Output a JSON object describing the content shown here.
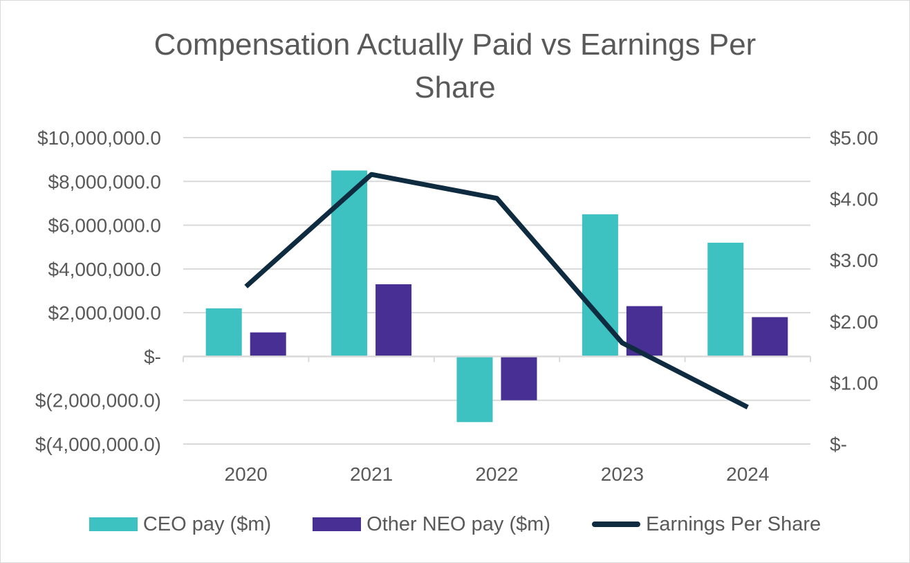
{
  "chart_data": {
    "type": "bar",
    "title": "Compensation Actually Paid vs Earnings Per Share",
    "title_lines": [
      "Compensation Actually Paid vs Earnings Per",
      "Share"
    ],
    "categories": [
      "2020",
      "2021",
      "2022",
      "2023",
      "2024"
    ],
    "series": [
      {
        "name": "CEO pay ($m)",
        "type": "bar",
        "axis": "left",
        "color": "#3ec1c1",
        "values": [
          2200000,
          8500000,
          -3000000,
          6500000,
          5200000
        ]
      },
      {
        "name": "Other NEO pay ($m)",
        "type": "bar",
        "axis": "left",
        "color": "#482f94",
        "values": [
          1100000,
          3300000,
          -2000000,
          2300000,
          1800000
        ]
      },
      {
        "name": "Earnings Per Share",
        "type": "line",
        "axis": "right",
        "color": "#0e2b40",
        "values": [
          2.57,
          4.4,
          4.01,
          1.65,
          0.6
        ]
      }
    ],
    "y_left": {
      "min": -4000000,
      "max": 10000000,
      "ticks": [
        10000000,
        8000000,
        6000000,
        4000000,
        2000000,
        0,
        -2000000,
        -4000000
      ],
      "tick_labels": [
        "$10,000,000.0",
        "$8,000,000.0",
        "$6,000,000.0",
        "$4,000,000.0",
        "$2,000,000.0",
        "$-",
        "$(2,000,000.0)",
        "$(4,000,000.0)"
      ]
    },
    "y_right": {
      "min": 0,
      "max": 5,
      "ticks": [
        5,
        4,
        3,
        2,
        1,
        0
      ],
      "tick_labels": [
        "$5.00",
        "$4.00",
        "$3.00",
        "$2.00",
        "$1.00",
        "$-"
      ]
    },
    "grid": true,
    "legend_position": "bottom"
  }
}
